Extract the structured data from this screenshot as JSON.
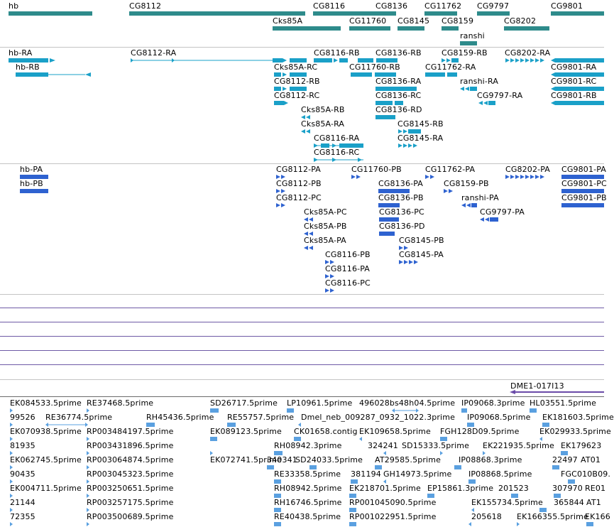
{
  "colors": {
    "gene": "#2e8b8b",
    "transcript": "#1aa0c8",
    "protein": "#2e62d0",
    "contig": "#6a4aa8",
    "est": "#5aa0e0",
    "separator": "#c4c4c4"
  },
  "tracks": {
    "genes": {
      "labels": [
        "hb",
        "CG8112",
        "CG8116",
        "CG8136",
        "CG11762",
        "CG9797",
        "CG9801",
        "Cks85A",
        "CG11760",
        "CG8145",
        "CG8159",
        "CG8202",
        "ranshi"
      ]
    },
    "transcripts": {
      "labels": [
        "hb-RA",
        "hb-RB",
        "CG8112-RA",
        "CG8116-RB",
        "CG8136-RB",
        "CG8159-RB",
        "CG8202-RA",
        "CG9801-RA",
        "Cks85A-RC",
        "CG11760-RB",
        "CG11762-RA",
        "CG8112-RB",
        "CG8136-RA",
        "ranshi-RA",
        "CG9801-RC",
        "CG8112-RC",
        "CG8136-RC",
        "CG9797-RA",
        "CG9801-RB",
        "Cks85A-RB",
        "CG8136-RD",
        "Cks85A-RA",
        "CG8145-RB",
        "CG8116-RA",
        "CG8145-RA",
        "CG8116-RC"
      ]
    },
    "proteins": {
      "labels": [
        "hb-PA",
        "hb-PB",
        "CG8112-PA",
        "CG11760-PB",
        "CG11762-PA",
        "CG8202-PA",
        "CG9801-PA",
        "CG8112-PB",
        "CG8136-PA",
        "CG8159-PB",
        "CG9801-PC",
        "CG8112-PC",
        "CG8136-PB",
        "ranshi-PA",
        "CG9801-PB",
        "Cks85A-PC",
        "CG8136-PC",
        "CG9797-PA",
        "Cks85A-PB",
        "CG8136-PD",
        "Cks85A-PA",
        "CG8145-PB",
        "CG8116-PB",
        "CG8145-PA",
        "CG8116-PA",
        "CG8116-PC"
      ]
    },
    "contigs": {
      "labels": [
        "DME1-017I13"
      ]
    },
    "ests": {
      "labels": [
        "EK084533.5prime",
        "RE37468.5prime",
        "SD26717.5prime",
        "LP10961.5prime",
        "496028bs48h04.5prime",
        "IP09068.3prime",
        "HL03551.5prime",
        "99526",
        "RE36774.5prime",
        "RH45436.5prime",
        "RE55757.5prime",
        "Dmel_neb_009287_0932_1022.3prime",
        "IP09068.5prime",
        "EK181603.5prime",
        "EK070938.5prime",
        "RP003484197.5prime",
        "EK089123.5prime",
        "CK01658.contig",
        "EK109658.5prime",
        "FGH128D09.5prime",
        "EK029933.5prime",
        "81935",
        "RP003431896.5prime",
        "RH08942.3prime",
        "324241",
        "SD15333.5prime",
        "EK221935.5prime",
        "EK179623",
        "EK062745.5prime",
        "RP003064874.5prime",
        "EK072741.5prime",
        "340341",
        "SD24033.5prime",
        "AT29585.5prime",
        "IP08868.3prime",
        "22497",
        "AT01",
        "90435",
        "RP003045323.5prime",
        "RE33358.5prime",
        "381194",
        "GH14973.5prime",
        "IP08868.5prime",
        "FGC010B09.",
        "EK004711.5prime",
        "RP003250651.5prime",
        "RH08942.5prime",
        "EK218701.5prime",
        "EP15861.3prime",
        "201523",
        "307970",
        "RE01",
        "21144",
        "RP003257175.5prime",
        "RH16746.5prime",
        "RP001045090.5prime",
        "EK155734.5prime",
        "365844",
        "AT1",
        "72355",
        "RP003500689.5prime",
        "RE40438.5prime",
        "RP001022951.5prime",
        "205618",
        "EK166355.5prime",
        "EK166"
      ]
    }
  }
}
